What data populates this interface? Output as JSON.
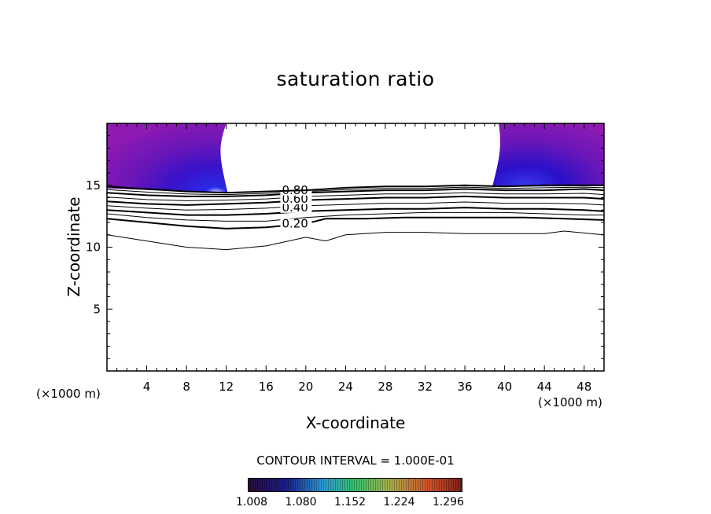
{
  "chart_data": {
    "type": "contour",
    "title": "saturation ratio",
    "xlabel": "X-coordinate",
    "ylabel": "Z-coordinate",
    "x_unit_label": "(×1000 m)",
    "xlim": [
      0,
      50
    ],
    "ylim": [
      0,
      20
    ],
    "x_ticks": [
      4,
      8,
      12,
      16,
      20,
      24,
      28,
      32,
      36,
      40,
      44,
      48
    ],
    "y_ticks": [
      5,
      10,
      15
    ],
    "contour_interval_label": "CONTOUR INTERVAL = 1.000E-01",
    "contours": [
      {
        "level": "0.20",
        "label": "0.20",
        "label_x": 17.6,
        "label_y": 11.6,
        "points": [
          [
            0,
            12.3
          ],
          [
            4,
            12.0
          ],
          [
            8,
            11.7
          ],
          [
            12,
            11.5
          ],
          [
            16,
            11.6
          ],
          [
            20,
            11.9
          ],
          [
            22,
            12.3
          ],
          [
            26,
            12.3
          ],
          [
            30,
            12.4
          ],
          [
            34,
            12.4
          ],
          [
            38,
            12.4
          ],
          [
            42,
            12.4
          ],
          [
            46,
            12.3
          ],
          [
            50,
            12.2
          ]
        ]
      },
      {
        "level": "0.40",
        "label": "0.40",
        "label_x": 17.6,
        "label_y": 12.9,
        "points": [
          [
            0,
            13.0
          ],
          [
            4,
            12.8
          ],
          [
            8,
            12.6
          ],
          [
            12,
            12.6
          ],
          [
            16,
            12.7
          ],
          [
            20,
            12.9
          ],
          [
            24,
            13.0
          ],
          [
            28,
            13.1
          ],
          [
            32,
            13.1
          ],
          [
            36,
            13.2
          ],
          [
            40,
            13.1
          ],
          [
            44,
            13.1
          ],
          [
            48,
            13.0
          ],
          [
            50,
            12.9
          ]
        ]
      },
      {
        "level": "0.60",
        "label": "0.60",
        "label_x": 17.6,
        "label_y": 13.6,
        "points": [
          [
            0,
            13.7
          ],
          [
            4,
            13.5
          ],
          [
            8,
            13.4
          ],
          [
            12,
            13.5
          ],
          [
            16,
            13.6
          ],
          [
            20,
            13.8
          ],
          [
            24,
            13.9
          ],
          [
            28,
            14.0
          ],
          [
            32,
            14.0
          ],
          [
            36,
            14.1
          ],
          [
            40,
            14.0
          ],
          [
            44,
            14.0
          ],
          [
            48,
            14.0
          ],
          [
            50,
            13.9
          ]
        ]
      },
      {
        "level": "0.80",
        "label": "0.80",
        "label_x": 17.6,
        "label_y": 14.3,
        "points": [
          [
            0,
            14.4
          ],
          [
            4,
            14.2
          ],
          [
            8,
            14.1
          ],
          [
            12,
            14.1
          ],
          [
            16,
            14.2
          ],
          [
            20,
            14.4
          ],
          [
            24,
            14.5
          ],
          [
            28,
            14.6
          ],
          [
            32,
            14.6
          ],
          [
            36,
            14.7
          ],
          [
            40,
            14.6
          ],
          [
            44,
            14.6
          ],
          [
            48,
            14.7
          ],
          [
            50,
            14.6
          ]
        ]
      },
      {
        "level": "1.00",
        "points": [
          [
            0,
            14.9
          ],
          [
            4,
            14.7
          ],
          [
            8,
            14.5
          ],
          [
            12,
            14.4
          ],
          [
            16,
            14.5
          ],
          [
            20,
            14.6
          ],
          [
            24,
            14.8
          ],
          [
            28,
            14.9
          ],
          [
            32,
            14.9
          ],
          [
            36,
            15.0
          ],
          [
            40,
            14.9
          ],
          [
            44,
            15.0
          ],
          [
            48,
            15.0
          ],
          [
            50,
            15.0
          ]
        ]
      }
    ],
    "thin_contours": [
      [
        [
          0,
          11.0
        ],
        [
          4,
          10.5
        ],
        [
          8,
          10.0
        ],
        [
          12,
          9.8
        ],
        [
          16,
          10.1
        ],
        [
          20,
          10.8
        ],
        [
          22,
          10.5
        ],
        [
          24,
          11.0
        ],
        [
          28,
          11.2
        ],
        [
          32,
          11.2
        ],
        [
          36,
          11.1
        ],
        [
          40,
          11.1
        ],
        [
          44,
          11.1
        ],
        [
          46,
          11.3
        ],
        [
          50,
          11.0
        ]
      ],
      [
        [
          0,
          12.7
        ],
        [
          4,
          12.4
        ],
        [
          8,
          12.2
        ],
        [
          12,
          12.1
        ],
        [
          16,
          12.1
        ],
        [
          20,
          12.4
        ],
        [
          24,
          12.6
        ],
        [
          28,
          12.7
        ],
        [
          32,
          12.8
        ],
        [
          36,
          12.8
        ],
        [
          40,
          12.8
        ],
        [
          44,
          12.7
        ],
        [
          48,
          12.6
        ],
        [
          50,
          12.6
        ]
      ],
      [
        [
          0,
          13.35
        ],
        [
          4,
          13.15
        ],
        [
          8,
          13.0
        ],
        [
          12,
          13.05
        ],
        [
          16,
          13.15
        ],
        [
          20,
          13.35
        ],
        [
          24,
          13.45
        ],
        [
          28,
          13.55
        ],
        [
          32,
          13.55
        ],
        [
          36,
          13.65
        ],
        [
          40,
          13.55
        ],
        [
          44,
          13.55
        ],
        [
          48,
          13.5
        ],
        [
          50,
          13.4
        ]
      ],
      [
        [
          0,
          14.05
        ],
        [
          4,
          13.85
        ],
        [
          8,
          13.75
        ],
        [
          12,
          13.8
        ],
        [
          16,
          13.9
        ],
        [
          20,
          14.1
        ],
        [
          24,
          14.2
        ],
        [
          28,
          14.3
        ],
        [
          32,
          14.3
        ],
        [
          36,
          14.4
        ],
        [
          40,
          14.3
        ],
        [
          44,
          14.3
        ],
        [
          48,
          14.35
        ],
        [
          50,
          14.25
        ]
      ],
      [
        [
          0,
          14.65
        ],
        [
          4,
          14.45
        ],
        [
          8,
          14.3
        ],
        [
          12,
          14.25
        ],
        [
          16,
          14.35
        ],
        [
          20,
          14.5
        ],
        [
          24,
          14.65
        ],
        [
          28,
          14.75
        ],
        [
          32,
          14.75
        ],
        [
          36,
          14.85
        ],
        [
          40,
          14.75
        ],
        [
          44,
          14.8
        ],
        [
          48,
          14.85
        ],
        [
          50,
          14.8
        ]
      ]
    ],
    "filled_regions": [
      {
        "name": "left",
        "x_range": [
          0,
          12
        ],
        "y_range": [
          15,
          20
        ],
        "min_value": 1.008,
        "max_value": 1.296
      },
      {
        "name": "right",
        "x_range": [
          39,
          50
        ],
        "y_range": [
          15,
          20
        ],
        "min_value": 1.008,
        "max_value": 1.296
      }
    ],
    "colorbar": {
      "ticks": [
        "1.008",
        "1.080",
        "1.152",
        "1.224",
        "1.296"
      ],
      "colors": [
        "#2a0a3a",
        "#1a1e8c",
        "#2c9bd6",
        "#35c46a",
        "#a8b04a",
        "#d4502a",
        "#7a2018"
      ]
    },
    "colors": {
      "fill_low": "#1a10e0",
      "fill_mid": "#5a14b8",
      "fill_high": "#8a1ab0",
      "line": "#000000"
    }
  }
}
